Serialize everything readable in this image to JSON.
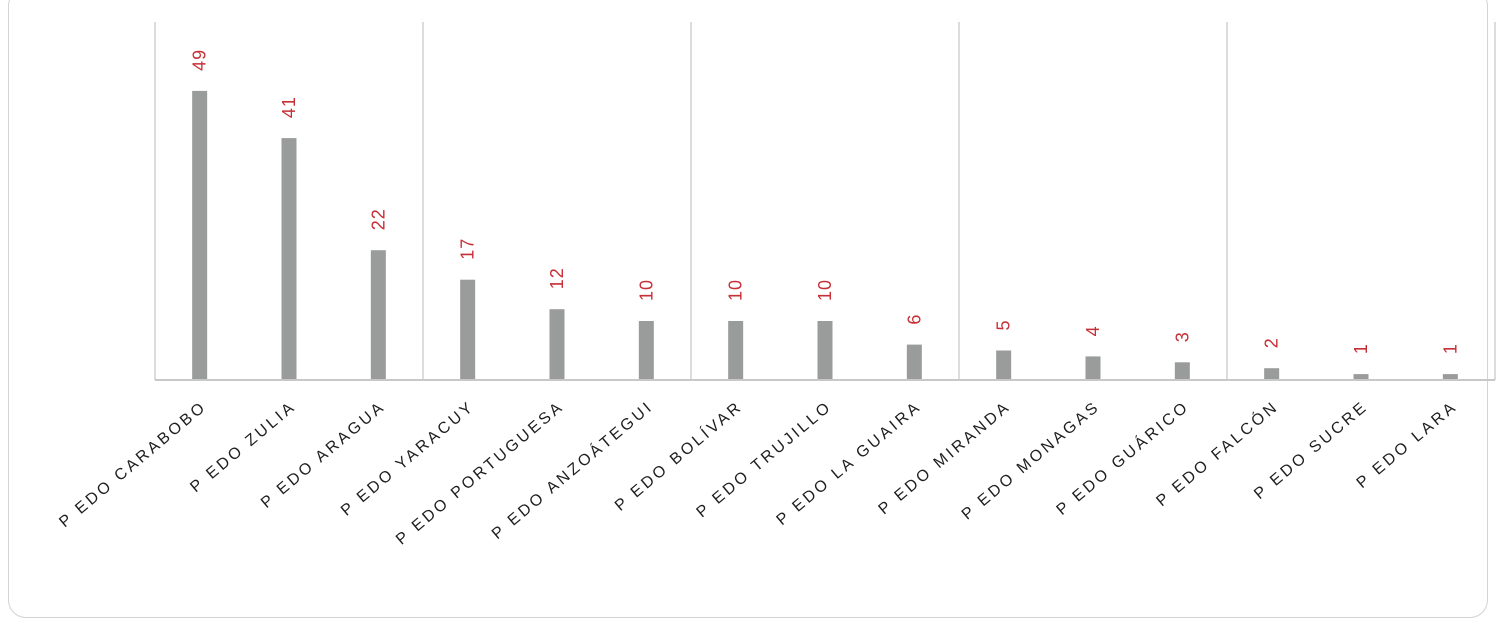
{
  "chart_data": {
    "type": "bar",
    "categories": [
      "P EDO CARABOBO",
      "P EDO ZULIA",
      "P EDO ARAGUA",
      "P EDO YARACUY",
      "P EDO PORTUGUESA",
      "P EDO ANZOÁTEGUI",
      "P EDO BOLÍVAR",
      "P EDO TRUJILLO",
      "P EDO LA GUAIRA",
      "P EDO MIRANDA",
      "P EDO MONAGAS",
      "P EDO GUÁRICO",
      "P EDO FALCÓN",
      "P EDO SUCRE",
      "P EDO LARA"
    ],
    "values": [
      49,
      41,
      22,
      17,
      12,
      10,
      10,
      10,
      6,
      5,
      4,
      3,
      2,
      1,
      1
    ],
    "ylim": [
      0,
      50
    ],
    "grid": true,
    "colors": {
      "bar": "#9a9c9c",
      "data_label": "#c62f36",
      "grid": "#d0d0d0"
    }
  }
}
